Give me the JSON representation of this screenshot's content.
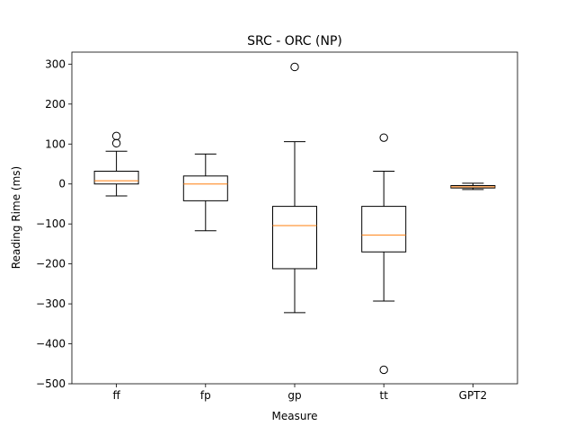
{
  "chart_data": {
    "type": "box",
    "title": "SRC - ORC (NP)",
    "xlabel": "Measure",
    "ylabel": "Reading Rime (ms)",
    "ylim": [
      -500,
      330
    ],
    "yticks": [
      300,
      200,
      100,
      0,
      -100,
      -200,
      -300,
      -400,
      -500
    ],
    "ytick_labels": [
      "300",
      "200",
      "100",
      "0",
      "−100",
      "−200",
      "−300",
      "−400",
      "−500"
    ],
    "grid": false,
    "categories": [
      "ff",
      "fp",
      "gp",
      "tt",
      "GPT2"
    ],
    "boxes": [
      {
        "label": "ff",
        "whisker_low": -30,
        "q1": 0,
        "median": 8,
        "q3": 32,
        "whisker_high": 82,
        "outliers": [
          102,
          120
        ]
      },
      {
        "label": "fp",
        "whisker_low": -117,
        "q1": -42,
        "median": 0,
        "q3": 20,
        "whisker_high": 75,
        "outliers": []
      },
      {
        "label": "gp",
        "whisker_low": -322,
        "q1": -212,
        "median": -104,
        "q3": -56,
        "whisker_high": 106,
        "outliers": [
          293
        ]
      },
      {
        "label": "tt",
        "whisker_low": -293,
        "q1": -170,
        "median": -128,
        "q3": -56,
        "whisker_high": 32,
        "outliers": [
          116,
          -465
        ]
      },
      {
        "label": "GPT2",
        "whisker_low": -14,
        "q1": -10,
        "median": -7,
        "q3": -4,
        "whisker_high": 2,
        "outliers": []
      }
    ],
    "colors": {
      "box": "#000000",
      "median": "#ff7f0e",
      "background": "#ffffff"
    }
  }
}
